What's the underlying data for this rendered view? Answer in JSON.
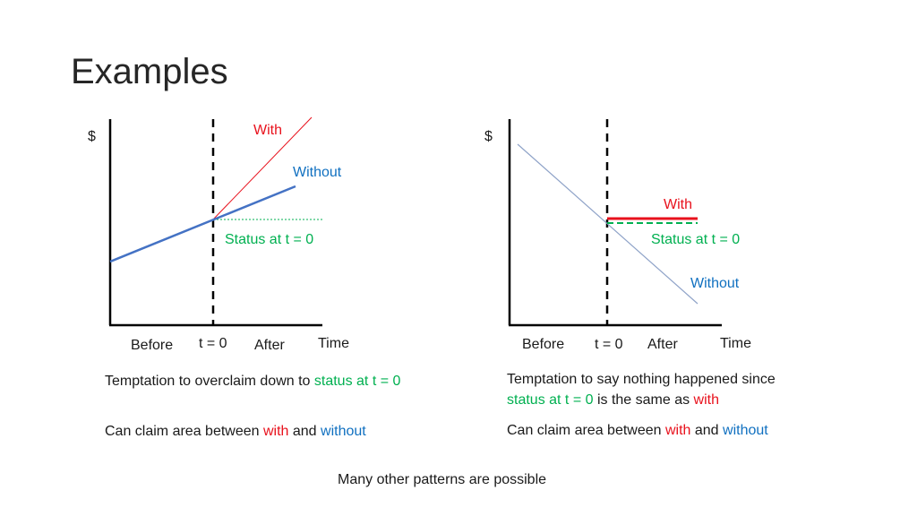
{
  "title": "Examples",
  "colors": {
    "with": "#e8111c",
    "without": "#1070c0",
    "status": "#00b050",
    "axis": "#000000"
  },
  "left_diagram": {
    "y_axis": "$",
    "x_axis": "Time",
    "ticks": [
      "Before",
      "t = 0",
      "After"
    ],
    "with_label": "With",
    "without_label": "Without",
    "status_label": "Status at t = 0"
  },
  "right_diagram": {
    "y_axis": "$",
    "x_axis": "Time",
    "ticks": [
      "Before",
      "t = 0",
      "After"
    ],
    "with_label": "With",
    "without_label": "Without",
    "status_label": "Status at t = 0"
  },
  "left_captions": {
    "line1": {
      "prefix": "Temptation to overclaim down to ",
      "status": "status at t = 0"
    },
    "line2": {
      "prefix": "Can claim area between ",
      "with": "with",
      "middle": " and ",
      "without": "without"
    }
  },
  "right_captions": {
    "line1": {
      "text": "Temptation to say nothing happened since"
    },
    "line2": {
      "status": "status at t = 0",
      "middle": " is the same as ",
      "with": "with"
    },
    "line3": {
      "prefix": "Can claim area between ",
      "with": "with",
      "middle": " and ",
      "without": "without"
    }
  },
  "footer": "Many other patterns are possible"
}
